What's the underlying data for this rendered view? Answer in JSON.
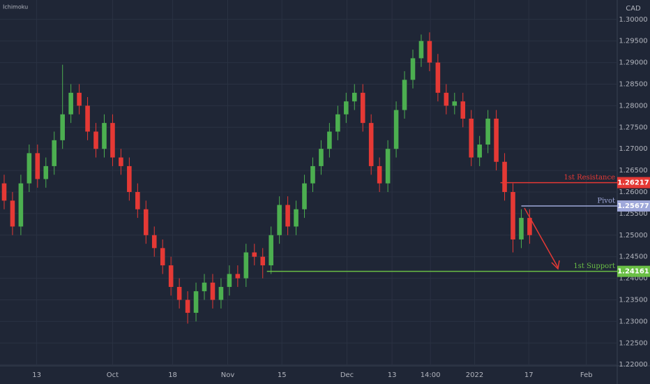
{
  "chart_data": {
    "type": "candlestick",
    "title": "Ichimoku",
    "currency": "CAD",
    "open": [
      1.262,
      1.258,
      1.252,
      1.262,
      1.269,
      1.263,
      1.266,
      1.272,
      1.278,
      1.283,
      1.28,
      1.274,
      1.27,
      1.276,
      1.268,
      1.266,
      1.26,
      1.256,
      1.25,
      1.247,
      1.243,
      1.238,
      1.235,
      1.232,
      1.237,
      1.239,
      1.235,
      1.238,
      1.241,
      1.24,
      1.246,
      1.245,
      1.243,
      1.25,
      1.257,
      1.252,
      1.256,
      1.262,
      1.266,
      1.27,
      1.274,
      1.278,
      1.281,
      1.283,
      1.276,
      1.266,
      1.262,
      1.27,
      1.279,
      1.286,
      1.291,
      1.295,
      1.29,
      1.283,
      1.28,
      1.281,
      1.277,
      1.268,
      1.271,
      1.277,
      1.267,
      1.26,
      1.249,
      1.254
    ],
    "high": [
      1.264,
      1.26,
      1.264,
      1.271,
      1.271,
      1.268,
      1.274,
      1.2895,
      1.285,
      1.285,
      1.282,
      1.276,
      1.278,
      1.278,
      1.27,
      1.268,
      1.262,
      1.258,
      1.252,
      1.249,
      1.245,
      1.24,
      1.237,
      1.239,
      1.241,
      1.241,
      1.24,
      1.243,
      1.243,
      1.248,
      1.248,
      1.247,
      1.252,
      1.259,
      1.259,
      1.258,
      1.264,
      1.268,
      1.272,
      1.276,
      1.28,
      1.283,
      1.285,
      1.285,
      1.278,
      1.268,
      1.272,
      1.281,
      1.288,
      1.293,
      1.2965,
      1.297,
      1.292,
      1.285,
      1.283,
      1.283,
      1.279,
      1.273,
      1.279,
      1.279,
      1.269,
      1.262,
      1.256,
      1.256
    ],
    "low": [
      1.256,
      1.25,
      1.25,
      1.26,
      1.261,
      1.261,
      1.264,
      1.27,
      1.276,
      1.278,
      1.272,
      1.268,
      1.268,
      1.266,
      1.264,
      1.258,
      1.254,
      1.248,
      1.245,
      1.241,
      1.236,
      1.233,
      1.2295,
      1.23,
      1.235,
      1.233,
      1.233,
      1.236,
      1.238,
      1.238,
      1.243,
      1.24,
      1.241,
      1.248,
      1.25,
      1.25,
      1.254,
      1.26,
      1.264,
      1.268,
      1.272,
      1.276,
      1.279,
      1.274,
      1.264,
      1.26,
      1.26,
      1.268,
      1.277,
      1.284,
      1.289,
      1.288,
      1.281,
      1.278,
      1.278,
      1.275,
      1.266,
      1.266,
      1.269,
      1.265,
      1.258,
      1.246,
      1.247,
      1.248
    ],
    "close": [
      1.258,
      1.252,
      1.262,
      1.269,
      1.263,
      1.266,
      1.272,
      1.278,
      1.283,
      1.28,
      1.274,
      1.27,
      1.276,
      1.268,
      1.266,
      1.26,
      1.256,
      1.25,
      1.247,
      1.243,
      1.238,
      1.235,
      1.232,
      1.237,
      1.239,
      1.235,
      1.238,
      1.241,
      1.24,
      1.246,
      1.245,
      1.243,
      1.25,
      1.257,
      1.252,
      1.256,
      1.262,
      1.266,
      1.27,
      1.274,
      1.278,
      1.281,
      1.283,
      1.276,
      1.266,
      1.262,
      1.27,
      1.279,
      1.286,
      1.291,
      1.295,
      1.29,
      1.283,
      1.28,
      1.281,
      1.277,
      1.268,
      1.271,
      1.277,
      1.267,
      1.26,
      1.249,
      1.254,
      1.25
    ],
    "up_color": "#4caf50",
    "down_color": "#e53935",
    "xlim": [
      0,
      74
    ],
    "xticks": [
      {
        "value": 4.4,
        "label": "13"
      },
      {
        "value": 13.5,
        "label": "Oct"
      },
      {
        "value": 20.7,
        "label": "18"
      },
      {
        "value": 27.3,
        "label": "Nov"
      },
      {
        "value": 33.8,
        "label": "15"
      },
      {
        "value": 41.6,
        "label": "Dec"
      },
      {
        "value": 47,
        "label": "13"
      },
      {
        "value": 51.6,
        "label": "14:00"
      },
      {
        "value": 56.9,
        "label": "2022"
      },
      {
        "value": 63.4,
        "label": "17"
      },
      {
        "value": 70.3,
        "label": "Feb"
      }
    ],
    "ylim": [
      1.2155,
      1.3045
    ],
    "yticks": [
      {
        "value": 1.3,
        "label": "1.30000"
      },
      {
        "value": 1.295,
        "label": "1.29500"
      },
      {
        "value": 1.29,
        "label": "1.29000"
      },
      {
        "value": 1.285,
        "label": "1.28500"
      },
      {
        "value": 1.28,
        "label": "1.28000"
      },
      {
        "value": 1.275,
        "label": "1.27500"
      },
      {
        "value": 1.27,
        "label": "1.27000"
      },
      {
        "value": 1.265,
        "label": "1.26500"
      },
      {
        "value": 1.26,
        "label": "1.26000"
      },
      {
        "value": 1.255,
        "label": "1.25500"
      },
      {
        "value": 1.25,
        "label": "1.25000"
      },
      {
        "value": 1.245,
        "label": "1.24500"
      },
      {
        "value": 1.24,
        "label": "1.24000"
      },
      {
        "value": 1.235,
        "label": "1.23500"
      },
      {
        "value": 1.23,
        "label": "1.23000"
      },
      {
        "value": 1.225,
        "label": "1.22500"
      },
      {
        "value": 1.22,
        "label": "1.22000"
      }
    ],
    "levels": [
      {
        "name": "1st Resistance",
        "value": 1.26217,
        "label": "1.26217",
        "color": "#e53935",
        "x_start": 60.0
      },
      {
        "name": "Pivot",
        "value": 1.25677,
        "label": "1.25677",
        "color": "#9fa8da",
        "x_start": 62.5
      },
      {
        "name": "1st Support",
        "value": 1.24161,
        "label": "1.24161",
        "color": "#6abf45",
        "x_start": 32.0
      }
    ]
  }
}
